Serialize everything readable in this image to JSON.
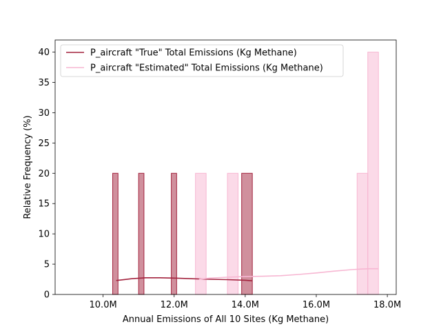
{
  "chart_data": {
    "type": "histogram",
    "xlabel": "Annual Emissions of All 10 Sites (Kg Methane)",
    "ylabel": "Relative Frequency (%)",
    "xlim": [
      8.65,
      18.25
    ],
    "ylim": [
      0,
      42
    ],
    "x_ticks": [
      {
        "value": 10,
        "label": "10.0M"
      },
      {
        "value": 12,
        "label": "12.0M"
      },
      {
        "value": 14,
        "label": "14.0M"
      },
      {
        "value": 16,
        "label": "16.0M"
      },
      {
        "value": 18,
        "label": "18.0M"
      }
    ],
    "y_ticks": [
      0,
      5,
      10,
      15,
      20,
      25,
      30,
      35,
      40
    ],
    "grid": false,
    "legend_position": "top-left",
    "series": [
      {
        "name": "P_aircraft \"True\" Total Emissions (Kg Methane)",
        "color": "#a2213c",
        "bin_width": 0.15,
        "bins": [
          {
            "x0": 10.27,
            "x1": 10.42,
            "value": 20
          },
          {
            "x0": 11.0,
            "x1": 11.15,
            "value": 20
          },
          {
            "x0": 11.92,
            "x1": 12.07,
            "value": 20
          },
          {
            "x0": 13.9,
            "x1": 14.2,
            "value": 20
          }
        ],
        "kde": {
          "x": [
            10.37,
            10.8,
            11.2,
            11.6,
            12.0,
            12.5,
            13.0,
            13.5,
            14.0,
            14.2
          ],
          "y": [
            2.3,
            2.6,
            2.75,
            2.75,
            2.7,
            2.6,
            2.5,
            2.45,
            2.35,
            2.25
          ]
        }
      },
      {
        "name": "P_aircraft \"Estimated\" Total Emissions (Kg Methane)",
        "color": "#f7b6d2",
        "bin_width": 0.3,
        "bins": [
          {
            "x0": 12.6,
            "x1": 12.9,
            "value": 20
          },
          {
            "x0": 13.5,
            "x1": 13.8,
            "value": 20
          },
          {
            "x0": 17.15,
            "x1": 17.45,
            "value": 20
          },
          {
            "x0": 17.45,
            "x1": 17.75,
            "value": 40
          }
        ],
        "kde": {
          "x": [
            12.7,
            13.0,
            13.5,
            14.0,
            14.5,
            15.0,
            15.5,
            16.0,
            16.5,
            17.0,
            17.3,
            17.5,
            17.75
          ],
          "y": [
            2.5,
            2.7,
            2.85,
            2.95,
            3.0,
            3.1,
            3.3,
            3.55,
            3.85,
            4.1,
            4.2,
            4.25,
            4.25
          ]
        }
      }
    ]
  }
}
